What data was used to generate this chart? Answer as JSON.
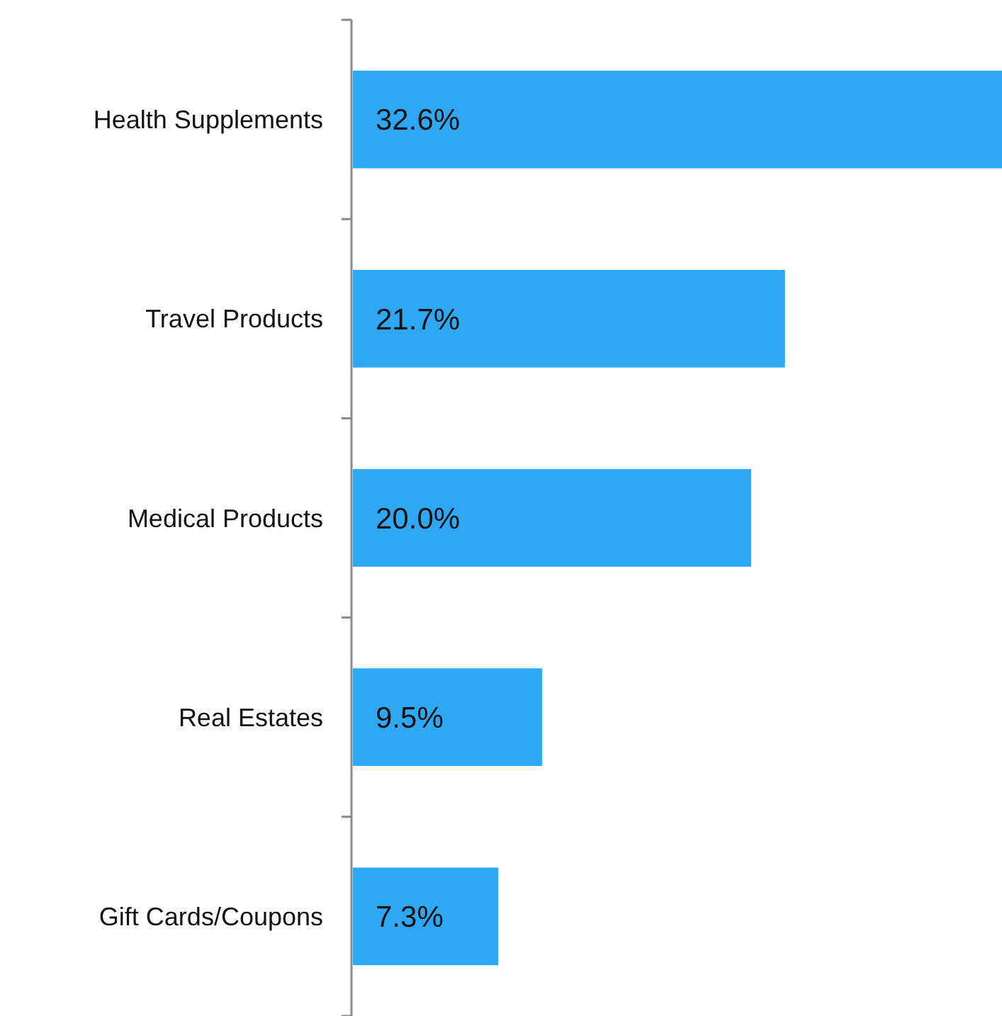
{
  "chart_data": {
    "type": "bar",
    "orientation": "horizontal",
    "categories": [
      "Health Supplements",
      "Travel Products",
      "Medical Products",
      "Real Estates",
      "Gift Cards/Coupons"
    ],
    "values": [
      32.6,
      21.7,
      20.0,
      9.5,
      7.3
    ],
    "value_labels": [
      "32.6%",
      "21.7%",
      "20.0%",
      "9.5%",
      "7.3%"
    ],
    "color": "#2ea7f4",
    "grid": false,
    "legend": false
  }
}
